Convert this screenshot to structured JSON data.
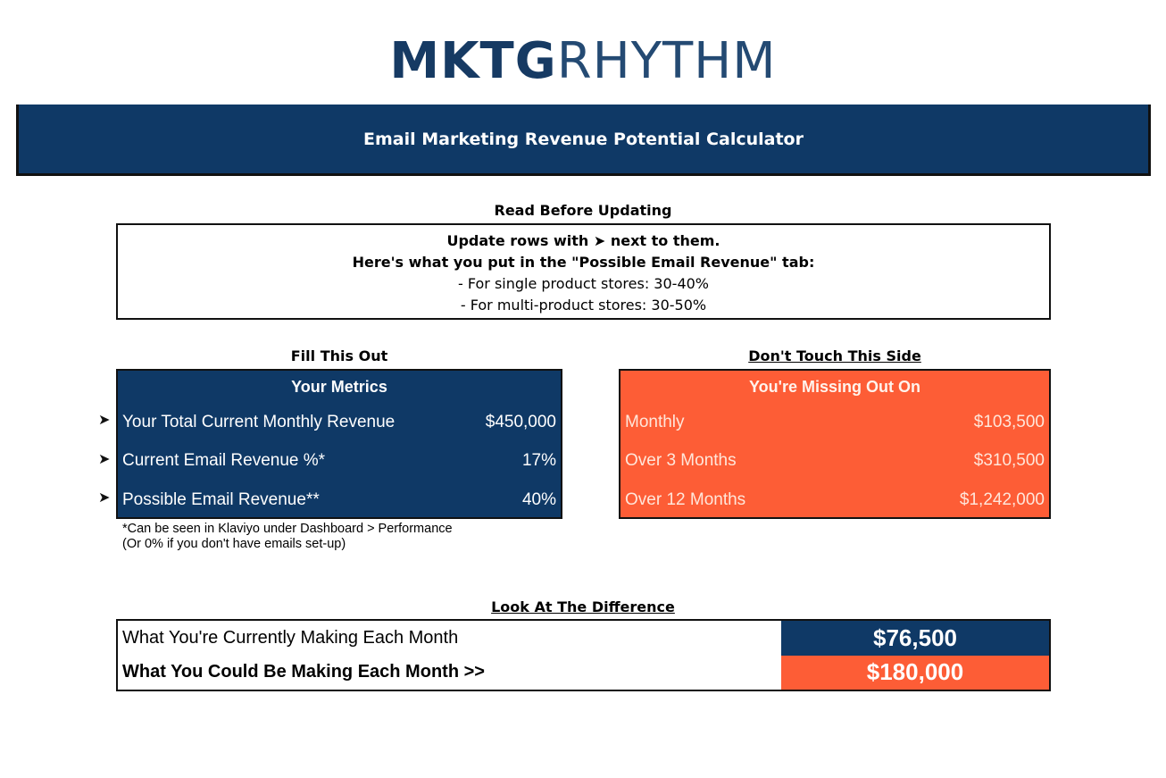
{
  "logo": {
    "part_bold": "MKTG",
    "part_light": "RHYTHM"
  },
  "banner": {
    "title": "Email Marketing Revenue Potential Calculator"
  },
  "instructions": {
    "heading": "Read Before Updating",
    "line1": "Update rows with ➤ next to them.",
    "line2": "Here's what you put in the \"Possible Email Revenue\" tab:",
    "line3": "- For single product stores: 30-40%",
    "line4": "- For multi-product stores: 30-50%"
  },
  "fill_section": {
    "heading": "Fill This Out",
    "panel_title": "Your Metrics",
    "rows": [
      {
        "label": "Your Total Current Monthly Revenue",
        "value": "$450,000",
        "marker": "➤"
      },
      {
        "label": "Current Email Revenue %*",
        "value": "17%",
        "marker": "➤"
      },
      {
        "label": "Possible Email Revenue**",
        "value": "40%",
        "marker": "➤"
      }
    ],
    "note1": "*Can be seen in Klaviyo under Dashboard > Performance",
    "note2": "(Or 0% if you don't have emails set-up)"
  },
  "missing_section": {
    "heading": "Don't Touch This Side",
    "panel_title": "You're Missing Out On",
    "rows": [
      {
        "label": "Monthly",
        "value": "$103,500"
      },
      {
        "label": "Over 3 Months",
        "value": "$310,500"
      },
      {
        "label": "Over 12 Months",
        "value": "$1,242,000"
      }
    ]
  },
  "difference": {
    "heading": "Look At The Difference",
    "current_label": "What You're Currently Making Each Month",
    "current_value": "$76,500",
    "potential_label": "What You Could Be Making Each Month >>",
    "potential_value": "$180,000"
  },
  "colors": {
    "navy": "#0f3966",
    "orange": "#fd5d36"
  }
}
